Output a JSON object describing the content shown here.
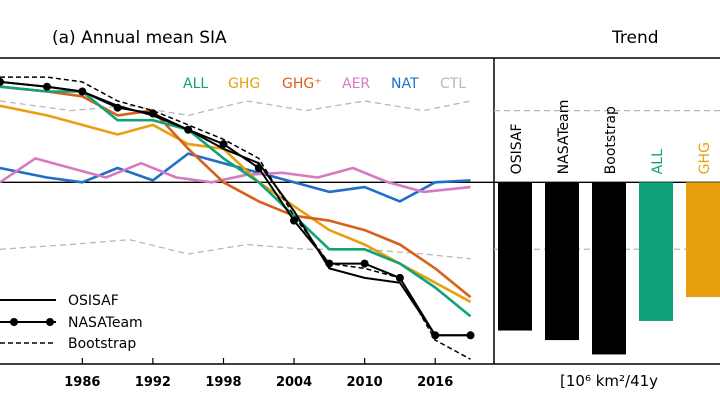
{
  "chart_data": {
    "type": "line",
    "title": "(a) Annual mean SIA",
    "trend_title": "Trend",
    "unit_label": "[10⁶ km²/41y",
    "x_ticks": [
      1986,
      1992,
      1998,
      2004,
      2010,
      2016
    ],
    "xlim": [
      1979,
      2021
    ],
    "ylim": [
      -1.9,
      1.3
    ],
    "zero_line": 0,
    "spread_bands": [
      {
        "name": "CTL spread upper",
        "style": "dashed",
        "color": "#b8b8b8",
        "x": [
          1979,
          1985,
          1990,
          1995,
          2000,
          2005,
          2010,
          2015,
          2019
        ],
        "values": [
          0.85,
          0.75,
          0.8,
          0.7,
          0.85,
          0.75,
          0.85,
          0.75,
          0.85
        ]
      },
      {
        "name": "CTL spread lower",
        "style": "dashed",
        "color": "#b8b8b8",
        "x": [
          1979,
          1985,
          1990,
          1995,
          2000,
          2005,
          2010,
          2015,
          2019
        ],
        "values": [
          -0.7,
          -0.65,
          -0.6,
          -0.75,
          -0.65,
          -0.7,
          -0.7,
          -0.75,
          -0.8
        ]
      }
    ],
    "series": [
      {
        "name": "NAT",
        "color": "#1f6fc8",
        "x": [
          1979,
          1983,
          1986,
          1989,
          1992,
          1995,
          1998,
          2001,
          2004,
          2007,
          2010,
          2013,
          2016,
          2019
        ],
        "values": [
          0.15,
          0.05,
          0.0,
          0.15,
          0.02,
          0.3,
          0.2,
          0.1,
          0.0,
          -0.1,
          -0.05,
          -0.2,
          0.0,
          0.02
        ]
      },
      {
        "name": "AER",
        "color": "#d67bc2",
        "x": [
          1979,
          1982,
          1985,
          1988,
          1991,
          1994,
          1997,
          2000,
          2003,
          2006,
          2009,
          2012,
          2015,
          2019
        ],
        "values": [
          0.0,
          0.25,
          0.15,
          0.05,
          0.2,
          0.05,
          0.0,
          0.08,
          0.1,
          0.05,
          0.15,
          0.0,
          -0.1,
          -0.05
        ]
      },
      {
        "name": "GHG",
        "color": "#e8a00e",
        "x": [
          1979,
          1983,
          1986,
          1989,
          1992,
          1995,
          1998,
          2001,
          2004,
          2007,
          2010,
          2013,
          2016,
          2019
        ],
        "values": [
          0.8,
          0.7,
          0.6,
          0.5,
          0.6,
          0.4,
          0.35,
          0.0,
          -0.25,
          -0.5,
          -0.65,
          -0.85,
          -1.05,
          -1.25
        ]
      },
      {
        "name": "GHG⁺",
        "color": "#d8601a",
        "x": [
          1979,
          1983,
          1986,
          1989,
          1992,
          1995,
          1998,
          2001,
          2004,
          2007,
          2010,
          2013,
          2016,
          2019
        ],
        "values": [
          1.0,
          0.95,
          0.9,
          0.7,
          0.75,
          0.35,
          0.0,
          -0.2,
          -0.35,
          -0.4,
          -0.5,
          -0.65,
          -0.9,
          -1.2
        ]
      },
      {
        "name": "ALL",
        "color": "#12a27a",
        "x": [
          1979,
          1983,
          1986,
          1989,
          1992,
          1995,
          1998,
          2001,
          2004,
          2007,
          2010,
          2013,
          2016,
          2019
        ],
        "values": [
          1.0,
          0.95,
          0.95,
          0.65,
          0.65,
          0.55,
          0.25,
          0.0,
          -0.35,
          -0.7,
          -0.7,
          -0.85,
          -1.1,
          -1.4
        ]
      },
      {
        "name": "OSISAF",
        "color": "#000000",
        "style": "solid",
        "x": [
          1979,
          1983,
          1986,
          1989,
          1992,
          1995,
          1998,
          2001,
          2004,
          2007,
          2010,
          2013,
          2016,
          2019
        ],
        "values": [
          1.05,
          1.0,
          0.95,
          0.8,
          0.7,
          0.55,
          0.35,
          0.2,
          -0.3,
          -0.9,
          -1.0,
          -1.05,
          -1.6,
          -1.6
        ]
      },
      {
        "name": "NASATeam",
        "color": "#000000",
        "style": "marker",
        "x": [
          1979,
          1983,
          1986,
          1989,
          1992,
          1995,
          1998,
          2001,
          2004,
          2007,
          2010,
          2013,
          2016,
          2019
        ],
        "values": [
          1.05,
          1.0,
          0.95,
          0.78,
          0.72,
          0.55,
          0.4,
          0.15,
          -0.4,
          -0.85,
          -0.85,
          -1.0,
          -1.6,
          -1.6
        ]
      },
      {
        "name": "Bootstrap",
        "color": "#000000",
        "style": "dashed",
        "x": [
          1979,
          1983,
          1986,
          1989,
          1992,
          1995,
          1998,
          2001,
          2004,
          2007,
          2010,
          2013,
          2016,
          2019
        ],
        "values": [
          1.1,
          1.1,
          1.05,
          0.85,
          0.75,
          0.6,
          0.45,
          0.25,
          -0.35,
          -0.85,
          -0.9,
          -1.0,
          -1.65,
          -1.85
        ]
      }
    ],
    "top_legend": [
      {
        "label": "ALL",
        "color": "#12a27a"
      },
      {
        "label": "GHG",
        "color": "#e8a00e"
      },
      {
        "label": "GHG⁺",
        "color": "#d8601a"
      },
      {
        "label": "AER",
        "color": "#d67bc2"
      },
      {
        "label": "NAT",
        "color": "#1f6fc8"
      },
      {
        "label": "CTL",
        "color": "#b8b8b8"
      }
    ],
    "obs_legend": [
      {
        "label": "OSISAF",
        "style": "solid"
      },
      {
        "label": "NASATeam",
        "style": "marker"
      },
      {
        "label": "Bootstrap",
        "style": "dashed"
      }
    ],
    "trend": {
      "ylim": [
        -1.9,
        1.3
      ],
      "dashed_levels": [
        0.75,
        -0.7
      ],
      "bars": [
        {
          "label": "OSISAF",
          "value": -1.55,
          "color": "#000000"
        },
        {
          "label": "NASATeam",
          "value": -1.65,
          "color": "#000000"
        },
        {
          "label": "Bootstrap",
          "value": -1.8,
          "color": "#000000"
        },
        {
          "label": "ALL",
          "value": -1.45,
          "color": "#12a27a"
        },
        {
          "label": "GHG",
          "value": -1.2,
          "color": "#e8a00e"
        }
      ]
    }
  }
}
